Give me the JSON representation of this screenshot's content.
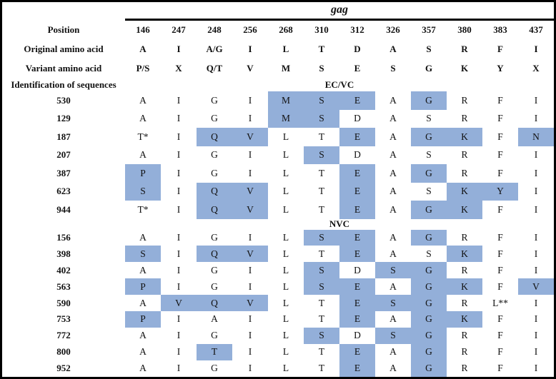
{
  "title": "gag",
  "colors": {
    "highlight": "#93AFD9"
  },
  "header": {
    "position_label": "Position",
    "original_label": "Original amino acid",
    "variant_label": "Variant amino acid",
    "identification_label": "Identification of sequences",
    "positions": [
      "146",
      "247",
      "248",
      "256",
      "268",
      "310",
      "312",
      "326",
      "357",
      "380",
      "383",
      "437"
    ],
    "original": [
      "A",
      "I",
      "A/G",
      "I",
      "L",
      "T",
      "D",
      "A",
      "S",
      "R",
      "F",
      "I"
    ],
    "variant": [
      "P/S",
      "X",
      "Q/T",
      "V",
      "M",
      "S",
      "E",
      "S",
      "G",
      "K",
      "Y",
      "X"
    ]
  },
  "groups": [
    {
      "name": "EC/VC",
      "rows": [
        {
          "id": "530",
          "aa": [
            "A",
            "I",
            "G",
            "I",
            "M",
            "S",
            "E",
            "A",
            "G",
            "R",
            "F",
            "I"
          ],
          "hl": [
            0,
            0,
            0,
            0,
            1,
            1,
            1,
            0,
            1,
            0,
            0,
            0
          ]
        },
        {
          "id": "129",
          "aa": [
            "A",
            "I",
            "G",
            "I",
            "M",
            "S",
            "D",
            "A",
            "S",
            "R",
            "F",
            "I"
          ],
          "hl": [
            0,
            0,
            0,
            0,
            1,
            1,
            0,
            0,
            0,
            0,
            0,
            0
          ]
        },
        {
          "id": "187",
          "aa": [
            "T*",
            "I",
            "Q",
            "V",
            "L",
            "T",
            "E",
            "A",
            "G",
            "K",
            "F",
            "N"
          ],
          "hl": [
            0,
            0,
            1,
            1,
            0,
            0,
            1,
            0,
            1,
            1,
            0,
            1
          ]
        },
        {
          "id": "207",
          "aa": [
            "A",
            "I",
            "G",
            "I",
            "L",
            "S",
            "D",
            "A",
            "S",
            "R",
            "F",
            "I"
          ],
          "hl": [
            0,
            0,
            0,
            0,
            0,
            1,
            0,
            0,
            0,
            0,
            0,
            0
          ]
        },
        {
          "id": "387",
          "aa": [
            "P",
            "I",
            "G",
            "I",
            "L",
            "T",
            "E",
            "A",
            "G",
            "R",
            "F",
            "I"
          ],
          "hl": [
            1,
            0,
            0,
            0,
            0,
            0,
            1,
            0,
            1,
            0,
            0,
            0
          ]
        },
        {
          "id": "623",
          "aa": [
            "S",
            "I",
            "Q",
            "V",
            "L",
            "T",
            "E",
            "A",
            "S",
            "K",
            "Y",
            "I"
          ],
          "hl": [
            1,
            0,
            1,
            1,
            0,
            0,
            1,
            0,
            0,
            1,
            1,
            0
          ]
        },
        {
          "id": "944",
          "aa": [
            "T*",
            "I",
            "Q",
            "V",
            "L",
            "T",
            "E",
            "A",
            "G",
            "K",
            "F",
            "I"
          ],
          "hl": [
            0,
            0,
            1,
            1,
            0,
            0,
            1,
            0,
            1,
            1,
            0,
            0
          ]
        }
      ]
    },
    {
      "name": "NVC",
      "rows": [
        {
          "id": "156",
          "aa": [
            "A",
            "I",
            "G",
            "I",
            "L",
            "S",
            "E",
            "A",
            "G",
            "R",
            "F",
            "I"
          ],
          "hl": [
            0,
            0,
            0,
            0,
            0,
            1,
            1,
            0,
            1,
            0,
            0,
            0
          ]
        },
        {
          "id": "398",
          "aa": [
            "S",
            "I",
            "Q",
            "V",
            "L",
            "T",
            "E",
            "A",
            "S",
            "K",
            "F",
            "I"
          ],
          "hl": [
            1,
            0,
            1,
            1,
            0,
            0,
            1,
            0,
            0,
            1,
            0,
            0
          ]
        },
        {
          "id": "402",
          "aa": [
            "A",
            "I",
            "G",
            "I",
            "L",
            "S",
            "D",
            "S",
            "G",
            "R",
            "F",
            "I"
          ],
          "hl": [
            0,
            0,
            0,
            0,
            0,
            1,
            0,
            1,
            1,
            0,
            0,
            0
          ]
        },
        {
          "id": "563",
          "aa": [
            "P",
            "I",
            "G",
            "I",
            "L",
            "S",
            "E",
            "A",
            "G",
            "K",
            "F",
            "V"
          ],
          "hl": [
            1,
            0,
            0,
            0,
            0,
            1,
            1,
            0,
            1,
            1,
            0,
            1
          ]
        },
        {
          "id": "590",
          "aa": [
            "A",
            "V",
            "Q",
            "V",
            "L",
            "T",
            "E",
            "S",
            "G",
            "R",
            "L**",
            "I"
          ],
          "hl": [
            0,
            1,
            1,
            1,
            0,
            0,
            1,
            1,
            1,
            0,
            0,
            0
          ]
        },
        {
          "id": "753",
          "aa": [
            "P",
            "I",
            "A",
            "I",
            "L",
            "T",
            "E",
            "A",
            "G",
            "K",
            "F",
            "I"
          ],
          "hl": [
            1,
            0,
            0,
            0,
            0,
            0,
            1,
            0,
            1,
            1,
            0,
            0
          ]
        },
        {
          "id": "772",
          "aa": [
            "A",
            "I",
            "G",
            "I",
            "L",
            "S",
            "D",
            "S",
            "G",
            "R",
            "F",
            "I"
          ],
          "hl": [
            0,
            0,
            0,
            0,
            0,
            1,
            0,
            1,
            1,
            0,
            0,
            0
          ]
        },
        {
          "id": "800",
          "aa": [
            "A",
            "I",
            "T",
            "I",
            "L",
            "T",
            "E",
            "A",
            "G",
            "R",
            "F",
            "I"
          ],
          "hl": [
            0,
            0,
            1,
            0,
            0,
            0,
            1,
            0,
            1,
            0,
            0,
            0
          ]
        },
        {
          "id": "952",
          "aa": [
            "A",
            "I",
            "G",
            "I",
            "L",
            "T",
            "E",
            "A",
            "G",
            "R",
            "F",
            "I"
          ],
          "hl": [
            0,
            0,
            0,
            0,
            0,
            0,
            1,
            0,
            1,
            0,
            0,
            0
          ]
        }
      ]
    }
  ]
}
